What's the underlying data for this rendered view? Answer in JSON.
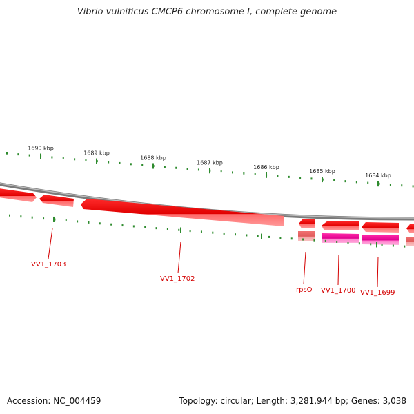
{
  "title": "Vibrio vulnificus CMCP6 chromosome I, complete genome",
  "scale_labels": [
    "1690 kbp",
    "1689 kbp",
    "1688 kbp",
    "1687 kbp",
    "1686 kbp",
    "1685 kbp",
    "1684 kbp"
  ],
  "genes": [
    "VV1_1703",
    "VV1_1702",
    "rpsO",
    "VV1_1700",
    "VV1_1699"
  ],
  "colors": {
    "tick": "#2e8b2e",
    "backbone": "#7a7a7a",
    "gene_forward": "#e00000",
    "gene_highlight": "#e00090",
    "label": "#d40000"
  },
  "footer": {
    "accession": "Accession: NC_004459",
    "summary": "Topology: circular; Length: 3,281,944 bp; Genes: 3,038"
  }
}
